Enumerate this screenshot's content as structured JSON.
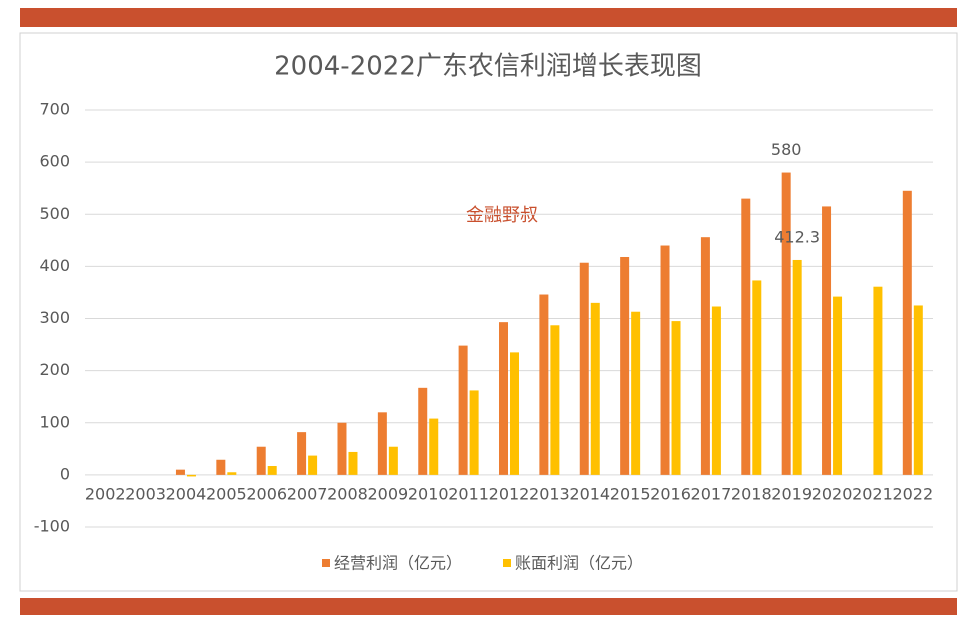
{
  "chart_data": {
    "type": "bar",
    "title": "2004-2022广东农信利润增长表现图",
    "annotation": "金融野叔",
    "categories": [
      "2002",
      "2003",
      "2004",
      "2005",
      "2006",
      "2007",
      "2008",
      "2009",
      "2010",
      "2011",
      "2012",
      "2013",
      "2014",
      "2015",
      "2016",
      "2017",
      "2018",
      "2019",
      "2020",
      "2021",
      "2022"
    ],
    "series": [
      {
        "name": "经营利润（亿元）",
        "color": "#ed7d31",
        "values": [
          null,
          null,
          10,
          29,
          54,
          82,
          100,
          120,
          167,
          248,
          293,
          346,
          407,
          418,
          440,
          456,
          530,
          580,
          515,
          null,
          545
        ],
        "value_labels": [
          null,
          null,
          null,
          null,
          null,
          null,
          null,
          null,
          null,
          null,
          null,
          null,
          null,
          null,
          null,
          null,
          null,
          "580",
          null,
          null,
          null
        ]
      },
      {
        "name": "账面利润（亿元）",
        "color": "#ffc000",
        "values": [
          null,
          null,
          -3,
          5,
          17,
          37,
          44,
          54,
          108,
          162,
          235,
          287,
          330,
          313,
          295,
          323,
          373,
          412.3,
          342,
          361,
          325
        ],
        "value_labels": [
          null,
          null,
          null,
          null,
          null,
          null,
          null,
          null,
          null,
          null,
          null,
          null,
          null,
          null,
          null,
          null,
          null,
          "412.3",
          null,
          null,
          null
        ]
      }
    ],
    "ylim": [
      -100,
      700
    ],
    "yticks": [
      -100,
      0,
      100,
      200,
      300,
      400,
      500,
      600,
      700
    ],
    "grid": true,
    "legend": "bottom"
  }
}
